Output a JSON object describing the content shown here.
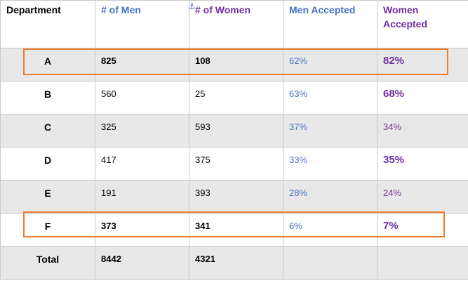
{
  "headers": {
    "department": "Department",
    "men": "# of Men",
    "women": "# of Women",
    "men_accepted": "Men Accepted",
    "women_accepted_line1": "Women",
    "women_accepted_line2": "Accepted"
  },
  "rows": [
    {
      "dept": "A",
      "men": "825",
      "women": "108",
      "men_pct": "62%",
      "women_pct": "82%"
    },
    {
      "dept": "B",
      "men": "560",
      "women": "25",
      "men_pct": "63%",
      "women_pct": "68%"
    },
    {
      "dept": "C",
      "men": "325",
      "women": "593",
      "men_pct": "37%",
      "women_pct": "34%"
    },
    {
      "dept": "D",
      "men": "417",
      "women": "375",
      "men_pct": "33%",
      "women_pct": "35%"
    },
    {
      "dept": "E",
      "men": "191",
      "women": "393",
      "men_pct": "28%",
      "women_pct": "24%"
    },
    {
      "dept": "F",
      "men": "373",
      "women": "341",
      "men_pct": "6%",
      "women_pct": "7%"
    }
  ],
  "total": {
    "label": "Total",
    "men": "8442",
    "women": "4321"
  },
  "colors": {
    "highlight": "#ed7d31",
    "men_accent": "#4472c4",
    "women_accent": "#7030a0"
  },
  "icons": [
    "anchor-icon"
  ]
}
